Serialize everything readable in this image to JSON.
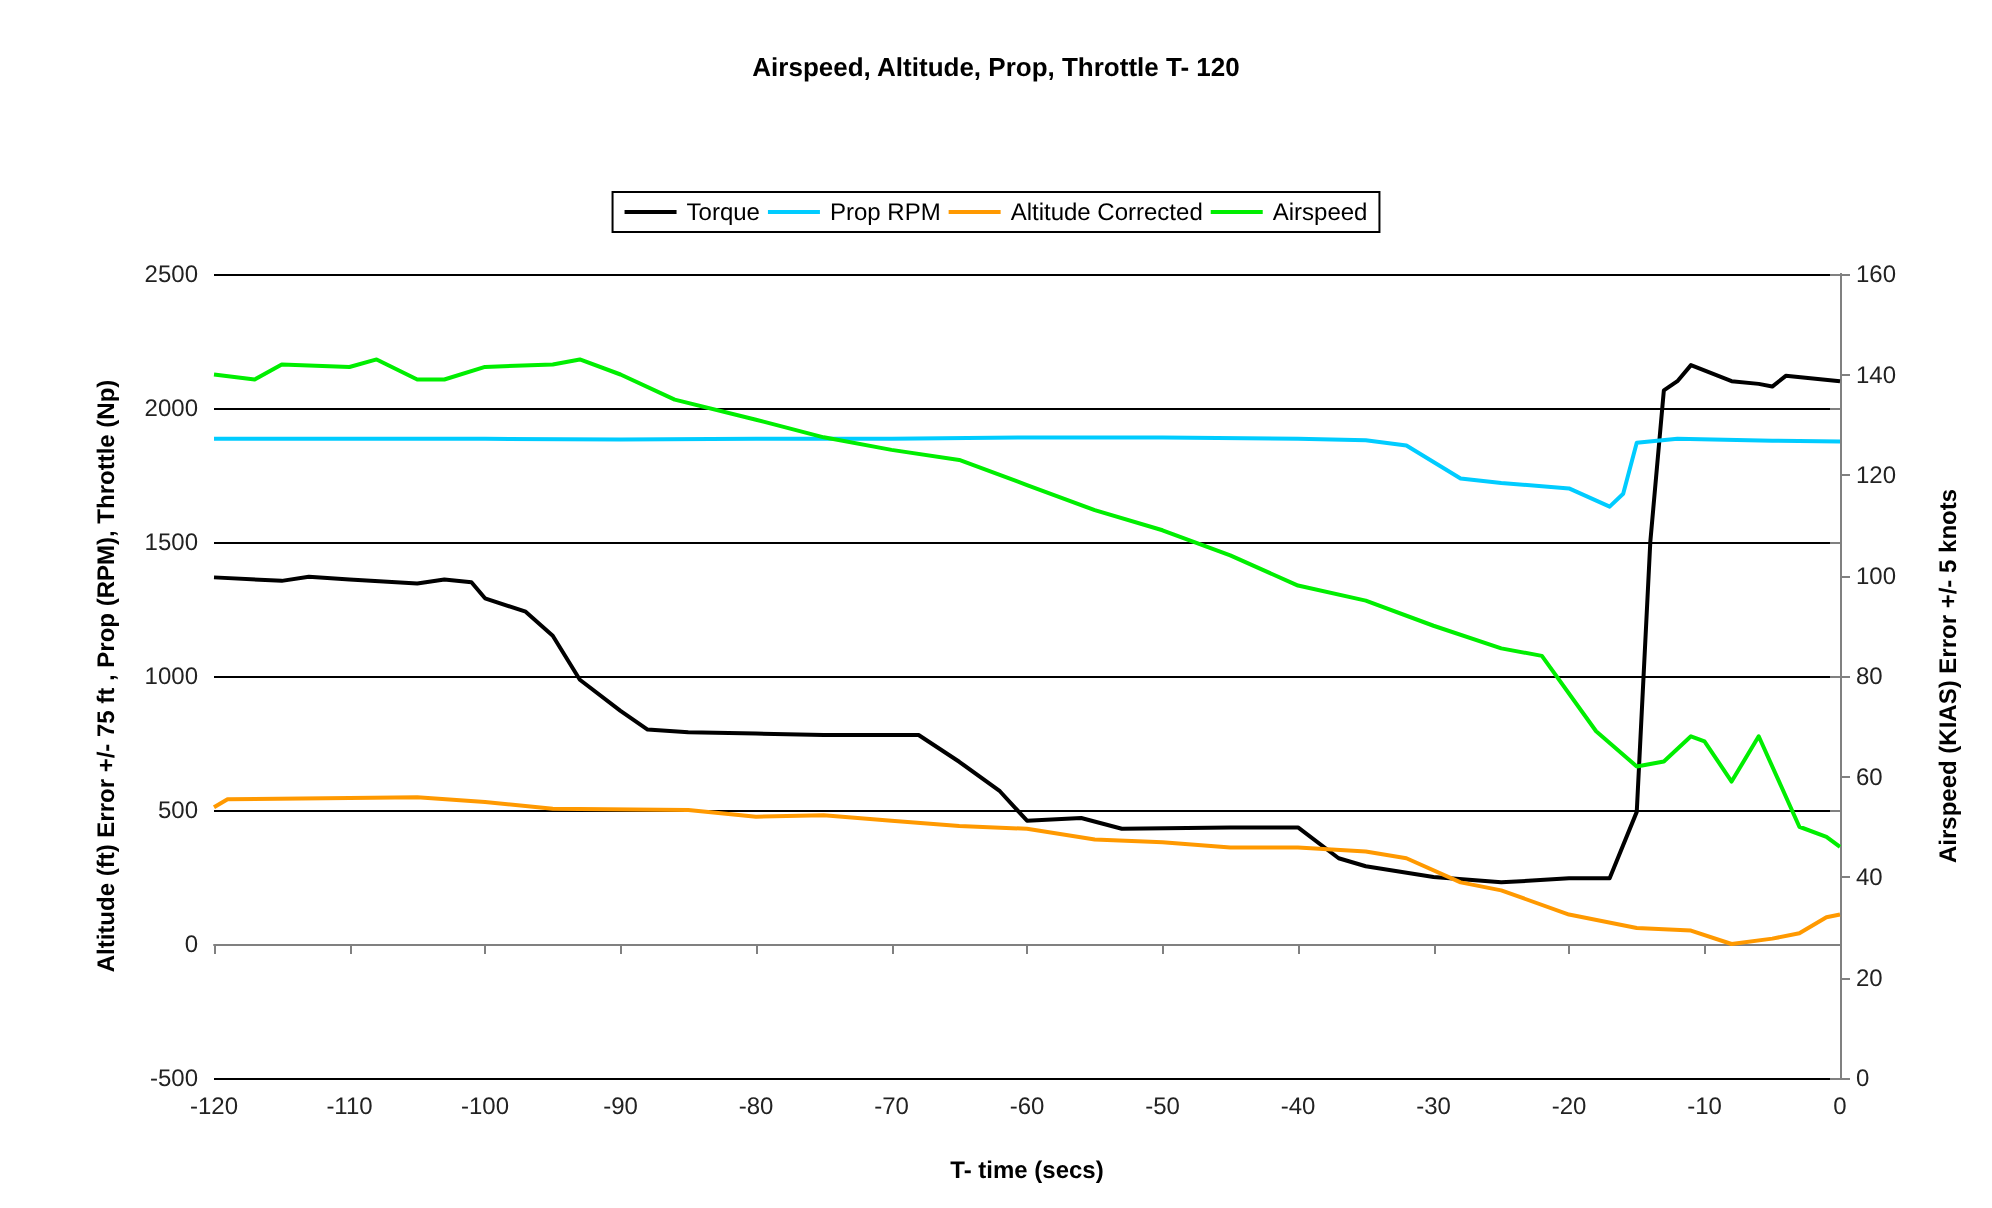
{
  "chart_data": {
    "type": "line",
    "title": "Airspeed, Altitude, Prop, Throttle T- 120",
    "xlabel": "T- time (secs)",
    "ylabel": "Altitude (ft) Error +/- 75 ft , Prop (RPM), Throttle (Np)",
    "y2label": "Airspeed (KIAS) Error +/- 5 knots",
    "xlim": [
      -120,
      0
    ],
    "xticks": [
      -120,
      -110,
      -100,
      -90,
      -80,
      -70,
      -60,
      -50,
      -40,
      -30,
      -20,
      -10,
      0
    ],
    "ylim": [
      -500,
      2500
    ],
    "yticks": [
      -500,
      0,
      500,
      1000,
      1500,
      2000,
      2500
    ],
    "y2lim": [
      0,
      160
    ],
    "y2ticks": [
      0,
      20,
      40,
      60,
      80,
      100,
      120,
      140,
      160
    ],
    "grid": "y",
    "legend": "top",
    "marker": "none",
    "line_style": "solid",
    "series": [
      {
        "name": "Torque",
        "color": "#000000",
        "x": [
          -120,
          -115,
          -113,
          -110,
          -105,
          -103,
          -101,
          -100,
          -97,
          -95,
          -93,
          -90,
          -88,
          -85,
          -80,
          -75,
          -68,
          -65,
          -62,
          -60,
          -56,
          -53,
          -45,
          -40,
          -37,
          -35,
          -30,
          -25,
          -20,
          -17,
          -15,
          -14,
          -13,
          -12,
          -11,
          -8,
          -6,
          -5,
          -4,
          0
        ],
        "values": [
          1368,
          1355,
          1370,
          1360,
          1345,
          1360,
          1350,
          1290,
          1240,
          1150,
          986,
          870,
          800,
          790,
          785,
          780,
          780,
          680,
          570,
          460,
          470,
          430,
          435,
          435,
          320,
          290,
          250,
          230,
          245,
          245,
          493,
          1500,
          2066,
          2100,
          2160,
          2100,
          2090,
          2080,
          2120,
          2100
        ]
      },
      {
        "name": "Prop RPM",
        "color": "#00ccff",
        "x": [
          -120,
          -110,
          -100,
          -90,
          -80,
          -70,
          -60,
          -50,
          -40,
          -35,
          -32,
          -28,
          -25,
          -20,
          -17,
          -16,
          -15,
          -12,
          -5,
          0
        ],
        "values": [
          1885,
          1885,
          1885,
          1882,
          1885,
          1885,
          1890,
          1890,
          1885,
          1880,
          1860,
          1737,
          1720,
          1700,
          1632,
          1680,
          1870,
          1885,
          1878,
          1875
        ]
      },
      {
        "name": "Altitude Corrected",
        "color": "#ff9900",
        "x": [
          -120,
          -119,
          -110,
          -105,
          -100,
          -95,
          -85,
          -80,
          -75,
          -70,
          -65,
          -60,
          -55,
          -50,
          -45,
          -40,
          -35,
          -32,
          -28,
          -25,
          -20,
          -15,
          -11,
          -8,
          -5,
          -3,
          -1,
          0
        ],
        "values": [
          510,
          540,
          545,
          548,
          530,
          505,
          500,
          475,
          480,
          460,
          440,
          430,
          390,
          380,
          360,
          360,
          345,
          320,
          230,
          200,
          110,
          60,
          50,
          0,
          20,
          40,
          100,
          110
        ]
      },
      {
        "name": "Airspeed",
        "color": "#00ee00",
        "axis": "y2",
        "x": [
          -120,
          -117,
          -115,
          -110,
          -108,
          -105,
          -103,
          -100,
          -95,
          -93,
          -90,
          -86,
          -80,
          -75,
          -70,
          -65,
          -60,
          -55,
          -50,
          -45,
          -40,
          -35,
          -30,
          -25,
          -22,
          -18,
          -15,
          -13,
          -11,
          -10,
          -8,
          -6,
          -3,
          -1,
          0
        ],
        "values": [
          140,
          139,
          142,
          141.5,
          143,
          139,
          139,
          141.5,
          142,
          143,
          140,
          135,
          131,
          127.5,
          125,
          123,
          118,
          113,
          109,
          104,
          98,
          95,
          90,
          85.5,
          84,
          69,
          62,
          63,
          68,
          67,
          59,
          68,
          50,
          48,
          46
        ]
      }
    ]
  }
}
